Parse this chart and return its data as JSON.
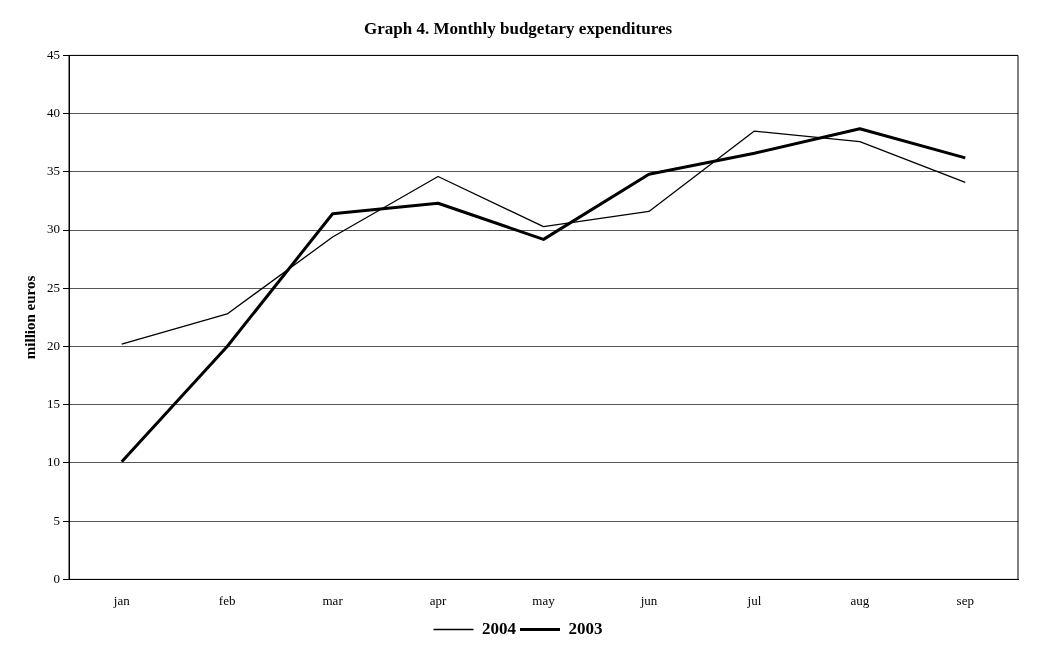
{
  "chart_data": {
    "type": "line",
    "title": "Graph 4. Monthly budgetary expenditures",
    "ylabel": "million euros",
    "categories": [
      "jan",
      "feb",
      "mar",
      "apr",
      "may",
      "jun",
      "jul",
      "aug",
      "sep"
    ],
    "series": [
      {
        "name": "2004",
        "color": "#000000",
        "values": [
          20.2,
          22.8,
          29.4,
          34.6,
          30.3,
          31.6,
          38.5,
          37.6,
          34.1
        ]
      },
      {
        "name": "2003",
        "color": "#000000",
        "values": [
          10.1,
          20.0,
          31.4,
          32.3,
          29.2,
          34.8,
          36.6,
          38.7,
          36.2
        ]
      }
    ],
    "ylim": [
      0,
      45
    ],
    "yticks": [
      0,
      5,
      10,
      15,
      20,
      25,
      30,
      35,
      40,
      45
    ],
    "grid": "y",
    "legend": "bottom",
    "marker": "none",
    "line_style": "solid"
  }
}
